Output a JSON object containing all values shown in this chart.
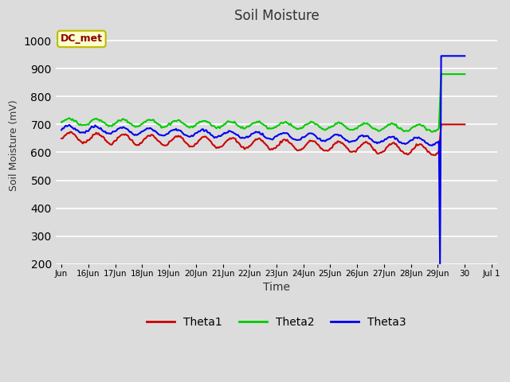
{
  "title": "Soil Moisture",
  "xlabel": "Time",
  "ylabel": "Soil Moisture (mV)",
  "ylim": [
    200,
    1050
  ],
  "yticks": [
    200,
    300,
    400,
    500,
    600,
    700,
    800,
    900,
    1000
  ],
  "bg_color": "#dcdcdc",
  "annotation_text": "DC_met",
  "annotation_bg": "#ffffcc",
  "annotation_border": "#bbbb00",
  "theta1_color": "#cc0000",
  "theta2_color": "#00cc00",
  "theta3_color": "#0000ee",
  "legend_labels": [
    "Theta1",
    "Theta2",
    "Theta3"
  ],
  "n_days": 15,
  "points_per_day": 24,
  "tick_labels": [
    "Jun",
    "16Jun",
    "17Jun",
    "18Jun",
    "19Jun",
    "20Jun",
    "21Jun",
    "22Jun",
    "23Jun",
    "24Jun",
    "25Jun",
    "26Jun",
    "27Jun",
    "28Jun",
    "29Jun",
    "30",
    "Jul 1"
  ]
}
